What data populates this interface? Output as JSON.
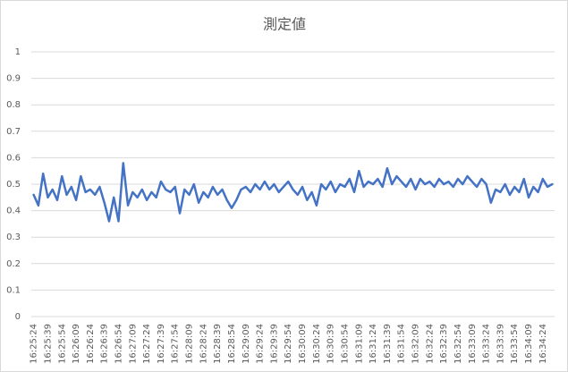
{
  "chart_data": {
    "type": "line",
    "title": "測定値",
    "categories": [
      "16:25:24",
      null,
      null,
      "16:25:39",
      null,
      null,
      "16:25:54",
      null,
      null,
      "16:26:09",
      null,
      null,
      "16:26:24",
      null,
      null,
      "16:26:39",
      null,
      null,
      "16:26:54",
      null,
      null,
      "16:27:09",
      null,
      null,
      "16:27:24",
      null,
      null,
      "16:27:39",
      null,
      null,
      "16:27:54",
      null,
      null,
      "16:28:09",
      null,
      null,
      "16:28:24",
      null,
      null,
      "16:28:39",
      null,
      null,
      "16:28:54",
      null,
      null,
      "16:29:09",
      null,
      null,
      "16:29:24",
      null,
      null,
      "16:29:39",
      null,
      null,
      "16:29:54",
      null,
      null,
      "16:30:09",
      null,
      null,
      "16:30:24",
      null,
      null,
      "16:30:39",
      null,
      null,
      "16:30:54",
      null,
      null,
      "16:31:09",
      null,
      null,
      "16:31:24",
      null,
      null,
      "16:31:39",
      null,
      null,
      "16:31:54",
      null,
      null,
      "16:32:09",
      null,
      null,
      "16:32:24",
      null,
      null,
      "16:32:39",
      null,
      null,
      "16:32:54",
      null,
      null,
      "16:33:09",
      null,
      null,
      "16:33:24",
      null,
      null,
      "16:33:39",
      null,
      null,
      "16:33:54",
      null,
      null,
      "16:34:09",
      null,
      null,
      "16:34:24",
      null,
      null
    ],
    "values": [
      0.46,
      0.42,
      0.54,
      0.45,
      0.48,
      0.44,
      0.53,
      0.46,
      0.49,
      0.44,
      0.53,
      0.47,
      0.48,
      0.46,
      0.49,
      0.43,
      0.36,
      0.45,
      0.36,
      0.58,
      0.42,
      0.47,
      0.45,
      0.48,
      0.44,
      0.47,
      0.45,
      0.51,
      0.48,
      0.47,
      0.49,
      0.39,
      0.48,
      0.46,
      0.5,
      0.43,
      0.47,
      0.45,
      0.49,
      0.46,
      0.48,
      0.44,
      0.41,
      0.44,
      0.48,
      0.49,
      0.47,
      0.5,
      0.48,
      0.51,
      0.48,
      0.5,
      0.47,
      0.49,
      0.51,
      0.48,
      0.46,
      0.49,
      0.44,
      0.47,
      0.42,
      0.5,
      0.48,
      0.51,
      0.47,
      0.5,
      0.49,
      0.52,
      0.47,
      0.55,
      0.49,
      0.51,
      0.5,
      0.52,
      0.49,
      0.56,
      0.5,
      0.53,
      0.51,
      0.49,
      0.52,
      0.48,
      0.52,
      0.5,
      0.51,
      0.49,
      0.52,
      0.5,
      0.51,
      0.49,
      0.52,
      0.5,
      0.53,
      0.51,
      0.49,
      0.52,
      0.5,
      0.43,
      0.48,
      0.47,
      0.5,
      0.46,
      0.49,
      0.47,
      0.52,
      0.45,
      0.49,
      0.47,
      0.52,
      0.49,
      0.5
    ],
    "color": "#4472c4",
    "ylim": [
      0,
      1
    ],
    "yticks": [
      0,
      0.1,
      0.2,
      0.3,
      0.4,
      0.5,
      0.6,
      0.7,
      0.8,
      0.9,
      1
    ],
    "grid": true
  }
}
